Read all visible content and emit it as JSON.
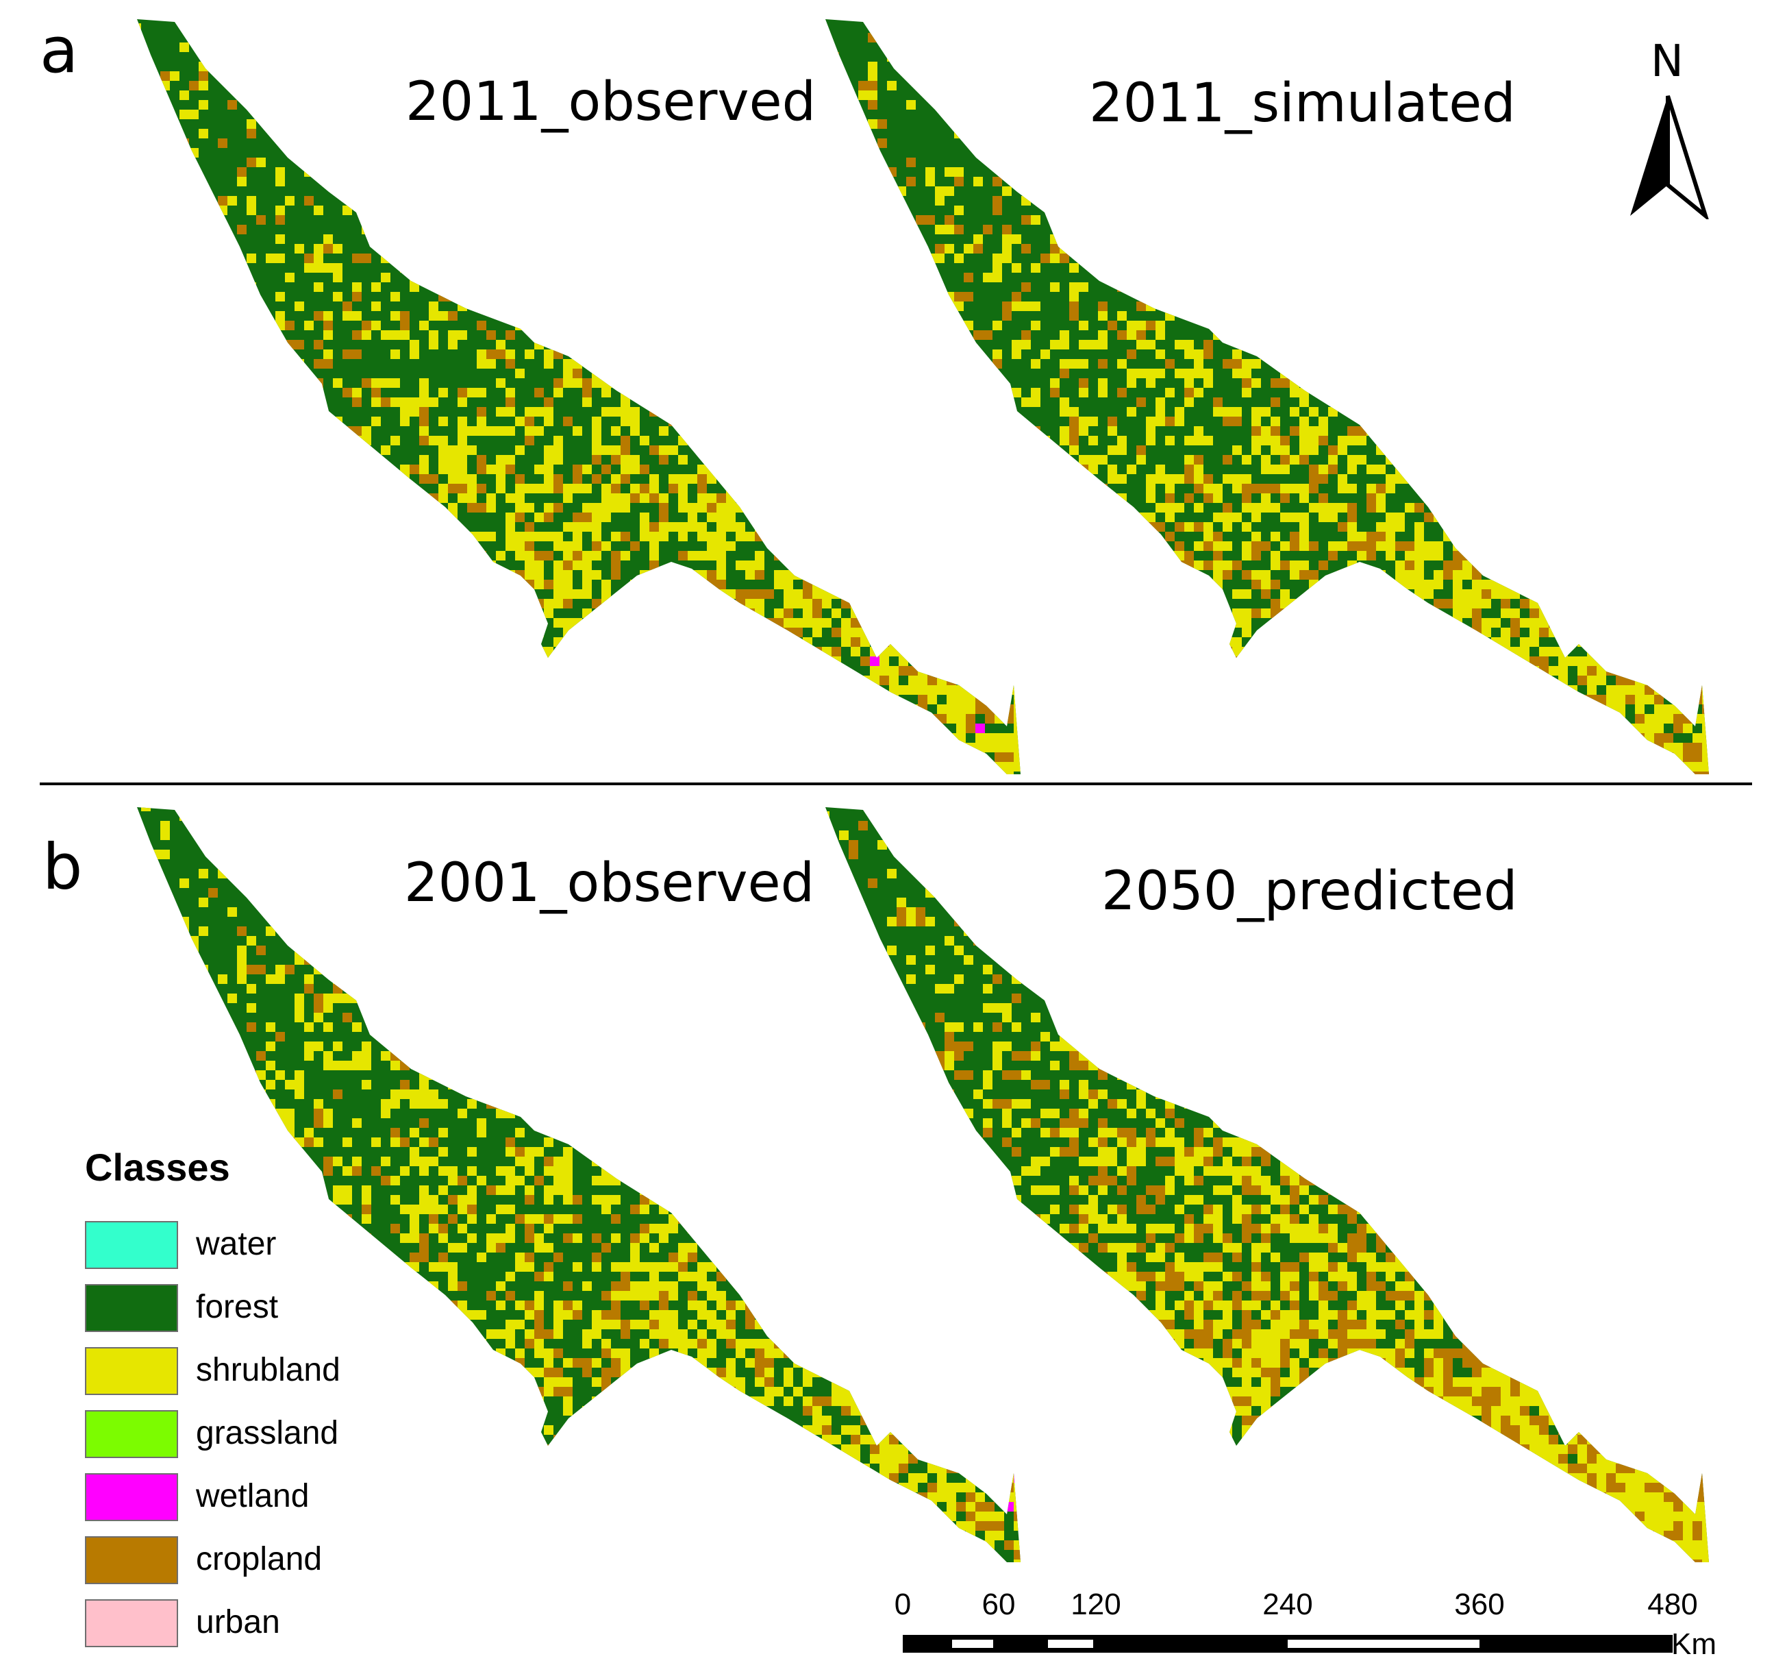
{
  "panels": [
    {
      "letter": "a",
      "maps": [
        {
          "title": "2011_observed",
          "variant": "obs2011"
        },
        {
          "title": "2011_simulated",
          "variant": "sim2011"
        }
      ]
    },
    {
      "letter": "b",
      "maps": [
        {
          "title": "2001_observed",
          "variant": "obs2001"
        },
        {
          "title": "2050_predicted",
          "variant": "pred2050"
        }
      ]
    }
  ],
  "north_arrow": {
    "label": "N"
  },
  "legend": {
    "title": "Classes",
    "items": [
      {
        "label": "water",
        "color": "#33ffcc"
      },
      {
        "label": "forest",
        "color": "#116d11"
      },
      {
        "label": "shrubland",
        "color": "#e6e600"
      },
      {
        "label": "grassland",
        "color": "#7cfc00"
      },
      {
        "label": "wetland",
        "color": "#ff00ff"
      },
      {
        "label": "cropland",
        "color": "#b87a00"
      },
      {
        "label": "urban",
        "color": "#ffc0cb"
      }
    ]
  },
  "scale_bar": {
    "ticks": [
      "0",
      "60",
      "120",
      "240",
      "360",
      "480"
    ],
    "unit": "Km"
  }
}
